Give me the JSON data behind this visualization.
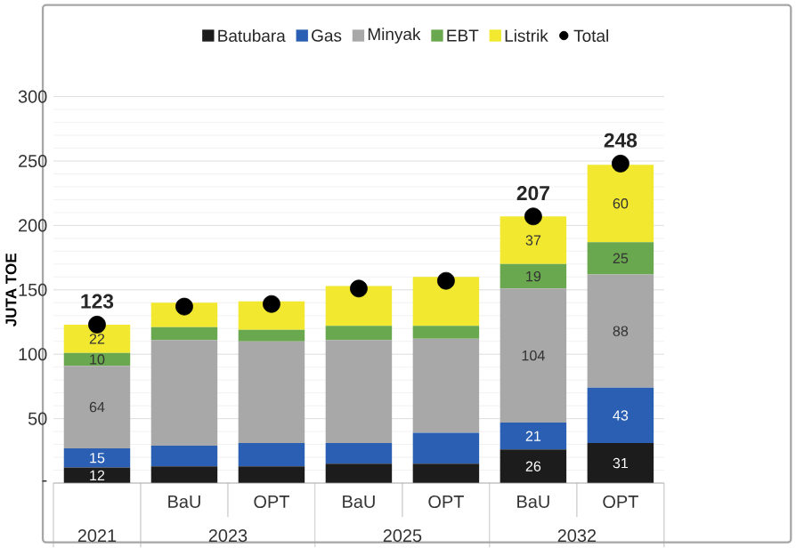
{
  "chart_data": {
    "type": "bar",
    "stacked": true,
    "ylabel": "JUTA TOE",
    "categories": [
      null,
      "BaU",
      "OPT",
      "BaU",
      "OPT",
      "BaU",
      "OPT"
    ],
    "annotations": [
      "2021",
      "2023",
      "2025",
      "2032"
    ],
    "ylim": [
      0,
      300
    ],
    "yticks": [
      {
        "value": 0,
        "label": "-"
      },
      50,
      100,
      150,
      200,
      250,
      300
    ],
    "grid": "y",
    "legend": "top",
    "series": [
      {
        "name": "Batubara",
        "color": "#1c1c1c",
        "values": [
          12,
          13,
          13,
          15,
          15,
          26,
          31
        ],
        "value_labels": [
          "12",
          null,
          null,
          null,
          null,
          "26",
          "31"
        ]
      },
      {
        "name": "Gas",
        "color": "#2b5fb4",
        "values": [
          15,
          16,
          18,
          16,
          24,
          21,
          43
        ],
        "value_labels": [
          "15",
          null,
          null,
          null,
          null,
          "21",
          "43"
        ]
      },
      {
        "name": "Minyak",
        "color": "#a8a8a8",
        "values": [
          64,
          82,
          79,
          80,
          73,
          104,
          88
        ],
        "value_labels": [
          "64",
          null,
          null,
          null,
          null,
          "104",
          "88"
        ]
      },
      {
        "name": "EBT",
        "color": "#6aa84f",
        "values": [
          10,
          10,
          9,
          11,
          10,
          19,
          25
        ],
        "value_labels": [
          "10",
          null,
          null,
          null,
          null,
          "19",
          "25"
        ]
      },
      {
        "name": "Listrik",
        "color": "#f2e830",
        "values": [
          22,
          19,
          22,
          31,
          38,
          37,
          60
        ],
        "value_labels": [
          "22",
          null,
          null,
          null,
          null,
          "37",
          "60"
        ]
      },
      {
        "name": "Total",
        "type": "scatter",
        "marker": "circle",
        "color": "#000000",
        "values": [
          123,
          137,
          139,
          151,
          157,
          207,
          248
        ],
        "value_labels": [
          "123",
          null,
          null,
          null,
          null,
          "207",
          "248"
        ]
      }
    ]
  }
}
